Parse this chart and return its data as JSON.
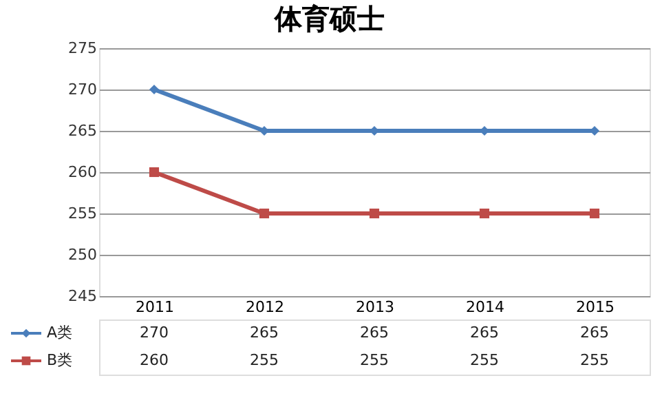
{
  "chart_data": {
    "type": "line",
    "title": "体育硕士",
    "categories": [
      "2011",
      "2012",
      "2013",
      "2014",
      "2015"
    ],
    "series": [
      {
        "name": "A类",
        "color": "#4a7ebb",
        "marker": "diamond",
        "values": [
          270,
          265,
          265,
          265,
          265
        ]
      },
      {
        "name": "B类",
        "color": "#be4b48",
        "marker": "square",
        "values": [
          260,
          255,
          255,
          255,
          255
        ]
      }
    ],
    "ylim": [
      245,
      275
    ],
    "yticks": [
      245,
      250,
      255,
      260,
      265,
      270,
      275
    ],
    "grid": "y",
    "data_labels": true,
    "legend": "bottom left"
  }
}
